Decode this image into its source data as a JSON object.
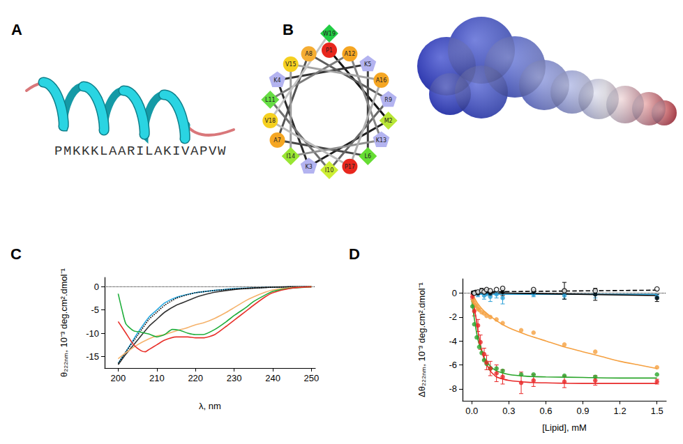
{
  "panel_a": {
    "label": "A",
    "sequence": "PMKKKLAARILAKIVAPVW"
  },
  "panel_b": {
    "label": "B",
    "helical_wheel": [
      {
        "residue": "P1",
        "color": "#e8271e",
        "marker": "circle"
      },
      {
        "residue": "M2",
        "color": "#b8e636",
        "marker": "diamond"
      },
      {
        "residue": "K3",
        "color": "#b3b3f0",
        "marker": "pentagon"
      },
      {
        "residue": "K4",
        "color": "#b3b3f0",
        "marker": "pentagon"
      },
      {
        "residue": "K5",
        "color": "#b3b3f0",
        "marker": "pentagon"
      },
      {
        "residue": "L6",
        "color": "#66dd33",
        "marker": "diamond"
      },
      {
        "residue": "A7",
        "color": "#f5a623",
        "marker": "circle"
      },
      {
        "residue": "A8",
        "color": "#f5ad33",
        "marker": "circle"
      },
      {
        "residue": "R9",
        "color": "#b3b3f0",
        "marker": "pentagon"
      },
      {
        "residue": "I10",
        "color": "#ccee33",
        "marker": "diamond"
      },
      {
        "residue": "L11",
        "color": "#66dd44",
        "marker": "diamond"
      },
      {
        "residue": "A12",
        "color": "#f5a623",
        "marker": "circle"
      },
      {
        "residue": "K13",
        "color": "#b3b3f0",
        "marker": "pentagon"
      },
      {
        "residue": "I14",
        "color": "#99e633",
        "marker": "diamond"
      },
      {
        "residue": "V15",
        "color": "#f5d020",
        "marker": "circle"
      },
      {
        "residue": "A16",
        "color": "#f5a623",
        "marker": "circle"
      },
      {
        "residue": "P17",
        "color": "#e8271e",
        "marker": "circle"
      },
      {
        "residue": "V18",
        "color": "#f5d020",
        "marker": "circle"
      },
      {
        "residue": "W19",
        "color": "#22cc44",
        "marker": "diamond"
      }
    ]
  },
  "chart_data": [
    {
      "panel_label": "C",
      "type": "line",
      "x_label": "λ, nm",
      "y_label": "θ₂₂₂ₙₘ, 10⁻³ deg.cm².dmol⁻¹",
      "xlim": [
        196.5,
        251
      ],
      "xticks": [
        200,
        210,
        220,
        230,
        240,
        250
      ],
      "ylim": [
        -17.5,
        2
      ],
      "yticks": [
        -15,
        -10,
        -5,
        0
      ],
      "grid": false,
      "reference_lines": [
        0
      ],
      "series": [
        {
          "color": "#29a8e0",
          "line_style": "solid",
          "x": [
            200,
            202,
            205,
            208,
            210,
            212,
            215,
            220,
            225,
            230,
            240,
            250
          ],
          "values": [
            -16.5,
            -14,
            -10,
            -6.5,
            -5,
            -3.5,
            -2.3,
            -1.3,
            -0.8,
            -0.4,
            -0.1,
            0
          ]
        },
        {
          "color": "#333333",
          "line_style": "solid",
          "x": [
            200,
            202,
            205,
            208,
            210,
            212,
            215,
            218,
            220,
            222,
            225,
            230,
            235,
            240,
            245,
            250
          ],
          "values": [
            -16.8,
            -14.5,
            -11.5,
            -8.5,
            -7,
            -5.5,
            -4,
            -3,
            -2.3,
            -1.8,
            -1.2,
            -0.6,
            -0.3,
            -0.1,
            0,
            0
          ]
        },
        {
          "color": "#000000",
          "line_style": "dotted",
          "x": [
            200,
            202,
            205,
            208,
            210,
            212,
            215,
            218,
            220,
            225,
            230,
            240,
            250
          ],
          "values": [
            -16.5,
            -14,
            -10.5,
            -7,
            -5.5,
            -4,
            -2.5,
            -1.7,
            -1.3,
            -0.8,
            -0.5,
            -0.1,
            0
          ]
        },
        {
          "color": "#f5b26b",
          "line_style": "solid",
          "x": [
            200,
            202,
            205,
            208,
            210,
            212,
            215,
            218,
            220,
            222,
            225,
            228,
            230,
            233,
            235,
            238,
            240,
            245,
            250
          ],
          "values": [
            -15.5,
            -14.2,
            -12.5,
            -11.2,
            -10.6,
            -10.3,
            -9.5,
            -8.8,
            -8.2,
            -7.8,
            -6.8,
            -5.5,
            -4.5,
            -3,
            -2.2,
            -1.2,
            -0.7,
            -0.2,
            0
          ]
        },
        {
          "color": "#1fae3b",
          "line_style": "solid",
          "x": [
            200,
            201,
            202,
            204,
            206,
            208,
            210,
            212,
            214,
            216,
            218,
            220,
            222,
            225,
            228,
            230,
            233,
            235,
            238,
            240,
            245,
            250
          ],
          "values": [
            -1.5,
            -5,
            -8,
            -9.5,
            -9.8,
            -10.2,
            -10.8,
            -10.3,
            -9.2,
            -9.4,
            -10,
            -10.3,
            -10.3,
            -9.2,
            -7.5,
            -6.2,
            -4.5,
            -3.2,
            -1.8,
            -1,
            -0.3,
            0
          ]
        },
        {
          "color": "#e8302a",
          "line_style": "solid",
          "x": [
            200,
            202,
            204,
            206,
            207,
            208,
            210,
            212,
            215,
            218,
            220,
            222,
            225,
            228,
            230,
            233,
            235,
            238,
            240,
            245,
            250
          ],
          "values": [
            -7.5,
            -10,
            -12.5,
            -13.8,
            -14,
            -13.5,
            -12.5,
            -11.5,
            -10.8,
            -10.8,
            -11,
            -11,
            -10.3,
            -8.5,
            -7.2,
            -5.3,
            -4,
            -2.2,
            -1.3,
            -0.3,
            0
          ]
        }
      ]
    },
    {
      "panel_label": "D",
      "type": "scatter",
      "x_label": "[Lipid], mM",
      "y_label": "Δθ₂₂₂ₙₘ, 10⁻³ deg.cm².dmol⁻¹",
      "xlim": [
        -0.075,
        1.575
      ],
      "xticks": [
        {
          "value": 0,
          "label": "0.0"
        },
        0.3,
        0.6,
        0.9,
        1.2,
        1.5
      ],
      "ylim": [
        -9,
        1.2
      ],
      "yticks": [
        -8,
        -6,
        -4,
        -2,
        0
      ],
      "grid": false,
      "reference_lines": [
        0
      ],
      "series": [
        {
          "type": "line",
          "color": "#f5a040",
          "line_style": "solid",
          "x": [
            0,
            0.05,
            0.1,
            0.2,
            0.3,
            0.45,
            0.6,
            0.75,
            0.9,
            1.05,
            1.2,
            1.35,
            1.5
          ],
          "values": [
            0,
            -0.9,
            -1.5,
            -2.3,
            -2.9,
            -3.5,
            -4,
            -4.5,
            -4.9,
            -5.3,
            -5.7,
            -6,
            -6.3
          ]
        },
        {
          "type": "scatter",
          "color": "#f5a040",
          "marker": "circle",
          "x": [
            0.01,
            0.02,
            0.03,
            0.04,
            0.05,
            0.06,
            0.08,
            0.1,
            0.12,
            0.15,
            0.2,
            0.25,
            0.4,
            0.5,
            0.75,
            1.0,
            1.5
          ],
          "values": [
            -0.6,
            -0.8,
            -1,
            -1.1,
            -1.3,
            -1.4,
            -1.6,
            -1.7,
            -1.9,
            -2,
            -2.2,
            -2.5,
            -3.1,
            -3.3,
            -4.3,
            -4.9,
            -6.2
          ]
        },
        {
          "type": "line",
          "color": "#2aa52a",
          "line_style": "solid",
          "x": [
            0,
            0.02,
            0.05,
            0.1,
            0.15,
            0.2,
            0.3,
            0.45,
            0.6,
            0.9,
            1.2,
            1.5
          ],
          "values": [
            -0.6,
            -2.1,
            -3.9,
            -5.4,
            -6.1,
            -6.5,
            -6.8,
            -6.95,
            -7,
            -7.05,
            -7.1,
            -7.1
          ]
        },
        {
          "type": "scatter",
          "color": "#2aa52a",
          "marker": "circle",
          "x": [
            0.005,
            0.02,
            0.04,
            0.06,
            0.08,
            0.1,
            0.12,
            0.15,
            0.2,
            0.25,
            0.4,
            0.5,
            0.75,
            1.0,
            1.5
          ],
          "values": [
            -1.1,
            -2.6,
            -3.7,
            -4.5,
            -5,
            -5.6,
            -5.9,
            -6.3,
            -6.3,
            -6.5,
            -6.8,
            -6.8,
            -6.9,
            -7,
            -6.8
          ]
        },
        {
          "type": "line",
          "color": "#e82828",
          "line_style": "solid",
          "x": [
            0,
            0.03,
            0.06,
            0.1,
            0.15,
            0.2,
            0.3,
            0.45,
            0.6,
            0.9,
            1.2,
            1.5
          ],
          "values": [
            0,
            -1.8,
            -3.8,
            -5.5,
            -6.5,
            -7,
            -7.3,
            -7.45,
            -7.5,
            -7.55,
            -7.55,
            -7.55
          ]
        },
        {
          "type": "scatter",
          "color": "#e82828",
          "marker": "circle",
          "x": [
            0.005,
            0.02,
            0.05,
            0.07,
            0.1,
            0.12,
            0.15,
            0.2,
            0.25,
            0.4,
            0.5,
            0.75,
            1.0,
            1.5
          ],
          "values": [
            -0.3,
            -1.5,
            -2.7,
            -4.1,
            -5.1,
            -5.8,
            -6.3,
            -6.7,
            -7,
            -7.5,
            -7.3,
            -7.4,
            -7.3,
            -7.4
          ],
          "errors": [
            0.2,
            0.4,
            0.5,
            0.6,
            0.5,
            0.6,
            0.6,
            0.7,
            0.6,
            0.9,
            0.5,
            0.5,
            0.4,
            0.2
          ]
        },
        {
          "type": "line",
          "color": "#2a9fd6",
          "line_style": "solid",
          "x": [
            0,
            1.5
          ],
          "values": [
            -0.1,
            -0.1
          ]
        },
        {
          "type": "scatter",
          "color": "#2a9fd6",
          "marker": "circle",
          "x": [
            0.02,
            0.05,
            0.08,
            0.1,
            0.12,
            0.15,
            0.2,
            0.25,
            0.5,
            0.75,
            1.0,
            1.5
          ],
          "values": [
            0.05,
            -0.1,
            0.1,
            -0.2,
            0,
            -0.3,
            -0.1,
            -0.4,
            -0.1,
            -0.2,
            -0.1,
            -0.3
          ],
          "errors": [
            0.1,
            0.2,
            0.2,
            0.3,
            0.2,
            0.4,
            0.3,
            0.5,
            0.2,
            0.3,
            0.3,
            0.2
          ]
        },
        {
          "type": "line",
          "color": "#000000",
          "line_style": "solid",
          "x": [
            0,
            1.5
          ],
          "values": [
            0.05,
            -0.2
          ]
        },
        {
          "type": "scatter",
          "color": "#000000",
          "marker": "circle",
          "x": [
            0.01,
            0.03,
            0.05,
            0.08,
            0.1,
            0.12,
            0.15,
            0.25,
            0.5,
            0.75,
            1.0,
            1.5
          ],
          "values": [
            0.05,
            0.1,
            0,
            0.2,
            0.1,
            0.15,
            0,
            0.1,
            0.1,
            0.2,
            -0.1,
            -0.4
          ],
          "errors": [
            0.1,
            0.1,
            0.1,
            0.2,
            0.1,
            0.2,
            0.2,
            0.3,
            0.2,
            0.7,
            0.5,
            0.3
          ]
        },
        {
          "type": "line",
          "color": "#000000",
          "line_style": "dashed",
          "x": [
            0,
            1.5
          ],
          "values": [
            0.1,
            0.25
          ]
        },
        {
          "type": "scatter",
          "color": "#000000",
          "marker": "open_circle",
          "x": [
            0.02,
            0.05,
            0.08,
            0.1,
            0.12,
            0.15,
            0.2,
            0.25,
            0.5,
            0.75,
            1.0,
            1.5
          ],
          "values": [
            0,
            0.1,
            0.2,
            0.1,
            0.3,
            0.2,
            0.3,
            0.4,
            0.3,
            0.2,
            0.2,
            0.35
          ]
        }
      ]
    }
  ]
}
